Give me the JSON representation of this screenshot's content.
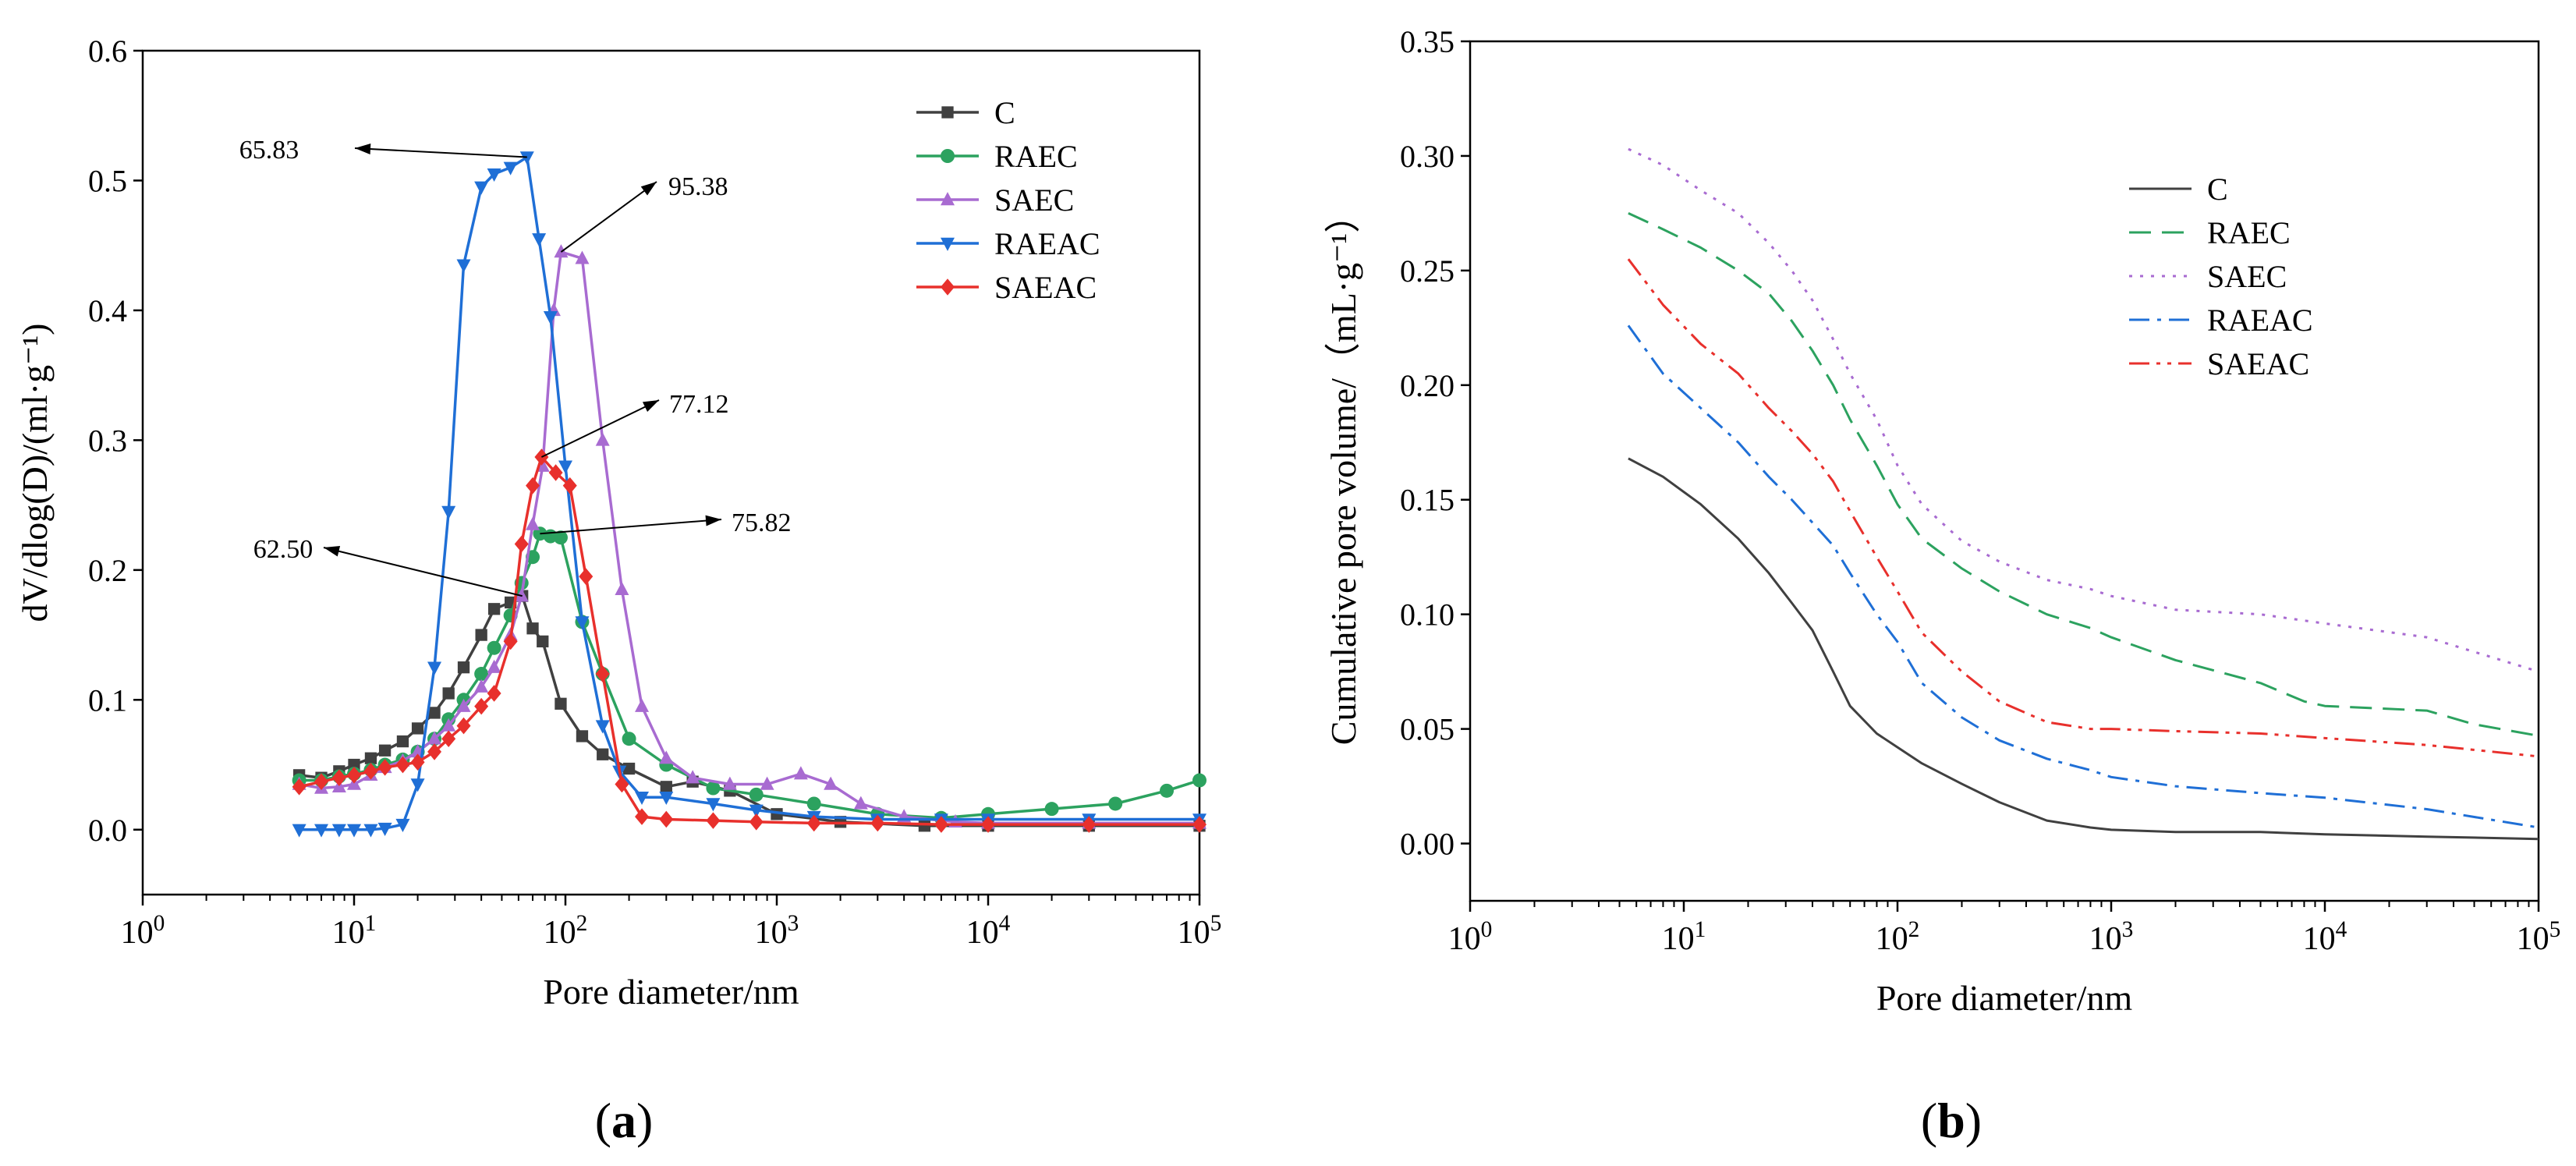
{
  "chart_data": [
    {
      "panel": "(a)",
      "type": "line",
      "xscale": "log",
      "xlabel": "Pore diameter/nm",
      "ylabel": "dV/dlog(D)/(ml·g⁻¹)",
      "xlim": [
        1,
        100000
      ],
      "ylim": [
        -0.05,
        0.6
      ],
      "x_ticks": [
        1,
        10,
        100,
        1000,
        10000,
        100000
      ],
      "x_tick_labels": [
        "10⁰",
        "10¹",
        "10²",
        "10³",
        "10⁴",
        "10⁵"
      ],
      "y_ticks": [
        0.0,
        0.1,
        0.2,
        0.3,
        0.4,
        0.5,
        0.6
      ],
      "y_tick_labels": [
        "0.0",
        "0.1",
        "0.2",
        "0.3",
        "0.4",
        "0.5",
        "0.6"
      ],
      "legend_position": "top-right",
      "series": [
        {
          "name": "C",
          "color": "#404040",
          "marker": "square",
          "x": [
            5.5,
            7,
            8.5,
            10,
            12,
            14,
            17,
            20,
            24,
            28,
            33,
            40,
            46,
            55,
            62.5,
            70,
            78,
            95,
            120,
            150,
            200,
            300,
            400,
            600,
            1000,
            2000,
            5000,
            10000,
            30000,
            100000
          ],
          "y": [
            0.042,
            0.04,
            0.045,
            0.05,
            0.055,
            0.061,
            0.068,
            0.078,
            0.09,
            0.105,
            0.125,
            0.15,
            0.17,
            0.175,
            0.18,
            0.155,
            0.145,
            0.097,
            0.072,
            0.058,
            0.047,
            0.033,
            0.037,
            0.03,
            0.012,
            0.006,
            0.003,
            0.003,
            0.003,
            0.003
          ]
        },
        {
          "name": "RAEC",
          "color": "#2ca25f",
          "marker": "circle",
          "x": [
            5.5,
            7,
            8.5,
            10,
            12,
            14,
            17,
            20,
            24,
            28,
            33,
            40,
            46,
            55,
            62,
            70,
            75.82,
            85,
            95,
            120,
            150,
            200,
            300,
            500,
            800,
            1500,
            3000,
            6000,
            10000,
            20000,
            40000,
            70000,
            100000
          ],
          "y": [
            0.038,
            0.038,
            0.041,
            0.043,
            0.046,
            0.05,
            0.054,
            0.06,
            0.07,
            0.085,
            0.1,
            0.12,
            0.14,
            0.165,
            0.19,
            0.21,
            0.228,
            0.226,
            0.225,
            0.16,
            0.12,
            0.07,
            0.05,
            0.032,
            0.027,
            0.02,
            0.012,
            0.009,
            0.012,
            0.016,
            0.02,
            0.03,
            0.038
          ]
        },
        {
          "name": "SAEC",
          "color": "#a86bd1",
          "marker": "triangle-up",
          "x": [
            5.5,
            7,
            8.5,
            10,
            12,
            14,
            17,
            20,
            24,
            28,
            33,
            40,
            46,
            55,
            62,
            70,
            78,
            88,
            95.38,
            120,
            150,
            185,
            230,
            300,
            400,
            600,
            900,
            1300,
            1800,
            2500,
            4000,
            7000,
            10000,
            30000,
            100000
          ],
          "y": [
            0.035,
            0.032,
            0.033,
            0.035,
            0.042,
            0.048,
            0.053,
            0.06,
            0.07,
            0.08,
            0.095,
            0.11,
            0.125,
            0.15,
            0.18,
            0.235,
            0.28,
            0.4,
            0.445,
            0.44,
            0.3,
            0.185,
            0.095,
            0.055,
            0.04,
            0.035,
            0.035,
            0.043,
            0.035,
            0.02,
            0.01,
            0.006,
            0.005,
            0.005,
            0.005
          ]
        },
        {
          "name": "RAEAC",
          "color": "#1f6fd6",
          "marker": "triangle-down",
          "x": [
            5.5,
            7,
            8.5,
            10,
            12,
            14,
            17,
            20,
            24,
            28,
            33,
            40,
            46,
            55,
            65.83,
            75,
            85,
            100,
            120,
            150,
            180,
            230,
            300,
            500,
            800,
            1500,
            3000,
            6000,
            10000,
            30000,
            100000
          ],
          "y": [
            0.0,
            0.0,
            0.0,
            0.0,
            0.0,
            0.001,
            0.004,
            0.035,
            0.125,
            0.245,
            0.435,
            0.495,
            0.505,
            0.51,
            0.518,
            0.455,
            0.395,
            0.28,
            0.16,
            0.08,
            0.045,
            0.025,
            0.025,
            0.02,
            0.015,
            0.01,
            0.008,
            0.008,
            0.008,
            0.008,
            0.008
          ]
        },
        {
          "name": "SAEAC",
          "color": "#e8302c",
          "marker": "diamond",
          "x": [
            5.5,
            7,
            8.5,
            10,
            12,
            14,
            17,
            20,
            24,
            28,
            33,
            40,
            46,
            55,
            62,
            70,
            77.12,
            90,
            105,
            125,
            150,
            185,
            230,
            300,
            500,
            800,
            1500,
            3000,
            6000,
            10000,
            30000,
            100000
          ],
          "y": [
            0.033,
            0.037,
            0.04,
            0.042,
            0.045,
            0.048,
            0.05,
            0.052,
            0.06,
            0.07,
            0.08,
            0.095,
            0.105,
            0.145,
            0.22,
            0.265,
            0.287,
            0.275,
            0.265,
            0.195,
            0.12,
            0.035,
            0.01,
            0.008,
            0.007,
            0.006,
            0.005,
            0.005,
            0.004,
            0.004,
            0.004,
            0.004
          ]
        }
      ],
      "annotations": [
        {
          "text": "65.83",
          "x": 65.83,
          "y": 0.518
        },
        {
          "text": "95.38",
          "x": 95.38,
          "y": 0.445
        },
        {
          "text": "77.12",
          "x": 77.12,
          "y": 0.287
        },
        {
          "text": "75.82",
          "x": 75.82,
          "y": 0.228
        },
        {
          "text": "62.50",
          "x": 62.5,
          "y": 0.18
        }
      ]
    },
    {
      "panel": "(b)",
      "type": "line",
      "xscale": "log",
      "xlabel": "Pore diameter/nm",
      "ylabel": "Cumulative pore volume/（mL·g⁻¹）",
      "xlim": [
        1,
        100000
      ],
      "ylim": [
        -0.025,
        0.35
      ],
      "x_ticks": [
        1,
        10,
        100,
        1000,
        10000,
        100000
      ],
      "x_tick_labels": [
        "10⁰",
        "10¹",
        "10²",
        "10³",
        "10⁴",
        "10⁵"
      ],
      "y_ticks": [
        0.0,
        0.05,
        0.1,
        0.15,
        0.2,
        0.25,
        0.3,
        0.35
      ],
      "y_tick_labels": [
        "0.00",
        "0.05",
        "0.10",
        "0.15",
        "0.20",
        "0.25",
        "0.30",
        "0.35"
      ],
      "legend_position": "top-right",
      "series": [
        {
          "name": "C",
          "color": "#404040",
          "dash": "solid",
          "x": [
            5.5,
            8,
            12,
            18,
            25,
            32,
            40,
            50,
            60,
            80,
            100,
            130,
            200,
            300,
            500,
            800,
            1000,
            2000,
            5000,
            10000,
            30000,
            100000
          ],
          "y": [
            0.168,
            0.16,
            0.148,
            0.133,
            0.118,
            0.105,
            0.093,
            0.075,
            0.06,
            0.048,
            0.042,
            0.035,
            0.026,
            0.018,
            0.01,
            0.007,
            0.006,
            0.005,
            0.005,
            0.004,
            0.003,
            0.002
          ]
        },
        {
          "name": "RAEC",
          "color": "#2ca25f",
          "dash": "dashed",
          "x": [
            5.5,
            8,
            12,
            18,
            25,
            32,
            40,
            50,
            60,
            80,
            100,
            130,
            200,
            300,
            500,
            800,
            1000,
            2000,
            5000,
            8000,
            10000,
            30000,
            50000,
            100000
          ],
          "y": [
            0.275,
            0.268,
            0.26,
            0.25,
            0.24,
            0.228,
            0.215,
            0.2,
            0.185,
            0.165,
            0.148,
            0.133,
            0.12,
            0.11,
            0.1,
            0.094,
            0.09,
            0.08,
            0.07,
            0.062,
            0.06,
            0.058,
            0.052,
            0.047
          ]
        },
        {
          "name": "SAEC",
          "color": "#a86bd1",
          "dash": "dotted",
          "x": [
            5.5,
            8,
            12,
            18,
            25,
            32,
            40,
            50,
            60,
            80,
            100,
            130,
            200,
            300,
            500,
            800,
            1000,
            2000,
            5000,
            10000,
            30000,
            100000
          ],
          "y": [
            0.303,
            0.296,
            0.285,
            0.275,
            0.262,
            0.25,
            0.237,
            0.22,
            0.205,
            0.185,
            0.165,
            0.148,
            0.132,
            0.123,
            0.115,
            0.111,
            0.108,
            0.102,
            0.1,
            0.096,
            0.09,
            0.075
          ]
        },
        {
          "name": "RAEAC",
          "color": "#1f6fd6",
          "dash": "dash-dot",
          "x": [
            5.5,
            8,
            12,
            18,
            25,
            32,
            40,
            50,
            60,
            80,
            100,
            130,
            200,
            300,
            500,
            800,
            1000,
            2000,
            5000,
            10000,
            30000,
            100000
          ],
          "y": [
            0.226,
            0.205,
            0.19,
            0.175,
            0.16,
            0.15,
            0.14,
            0.13,
            0.118,
            0.1,
            0.088,
            0.07,
            0.055,
            0.045,
            0.037,
            0.032,
            0.029,
            0.025,
            0.022,
            0.02,
            0.015,
            0.007
          ]
        },
        {
          "name": "SAEAC",
          "color": "#e8302c",
          "dash": "dash-dot-dot",
          "x": [
            5.5,
            8,
            12,
            18,
            25,
            32,
            40,
            50,
            60,
            80,
            100,
            130,
            200,
            300,
            500,
            800,
            1000,
            2000,
            5000,
            10000,
            30000,
            100000
          ],
          "y": [
            0.255,
            0.235,
            0.218,
            0.205,
            0.19,
            0.18,
            0.17,
            0.158,
            0.145,
            0.125,
            0.11,
            0.092,
            0.075,
            0.062,
            0.053,
            0.05,
            0.05,
            0.049,
            0.048,
            0.046,
            0.043,
            0.038
          ]
        }
      ]
    }
  ]
}
